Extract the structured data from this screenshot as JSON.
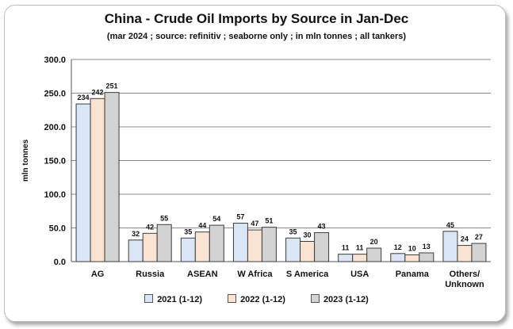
{
  "chart_data": {
    "type": "bar",
    "title": "China - Crude Oil Imports by Source in Jan-Dec",
    "subtitle": "(mar 2024 ; source: refinitiv ; seaborne only ; in mln tonnes ; all tankers)",
    "xlabel": "",
    "ylabel": "mln tonnes",
    "ylim": [
      0,
      300
    ],
    "yticks": [
      "0.0",
      "50.0",
      "100.0",
      "150.0",
      "200.0",
      "250.0",
      "300.0"
    ],
    "categories": [
      "AG",
      "Russia",
      "ASEAN",
      "W Africa",
      "S America",
      "USA",
      "Panama",
      "Others/\nUnknown"
    ],
    "series": [
      {
        "name": "2021 (1-12)",
        "values": [
          234,
          32,
          35,
          57,
          35,
          11,
          12,
          45
        ],
        "color": "#dae6f6"
      },
      {
        "name": "2022 (1-12)",
        "values": [
          242,
          42,
          44,
          47,
          30,
          11,
          10,
          24
        ],
        "color": "#fbe3d3"
      },
      {
        "name": "2023 (1-12)",
        "values": [
          251,
          55,
          54,
          51,
          43,
          20,
          13,
          27
        ],
        "color": "#d3d3d3"
      }
    ],
    "grid": true,
    "legend_position": "bottom"
  }
}
